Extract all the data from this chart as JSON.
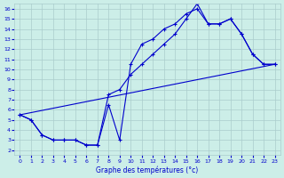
{
  "bg_color": "#cceee8",
  "grid_color": "#aacccc",
  "line_color": "#0000cc",
  "xlim": [
    -0.5,
    23.5
  ],
  "ylim": [
    1.5,
    16.5
  ],
  "xticks": [
    0,
    1,
    2,
    3,
    4,
    5,
    6,
    7,
    8,
    9,
    10,
    11,
    12,
    13,
    14,
    15,
    16,
    17,
    18,
    19,
    20,
    21,
    22,
    23
  ],
  "yticks": [
    2,
    3,
    4,
    5,
    6,
    7,
    8,
    9,
    10,
    11,
    12,
    13,
    14,
    15,
    16
  ],
  "xlabel": "Graphe des températures (°c)",
  "hours": [
    0,
    1,
    2,
    3,
    4,
    5,
    6,
    7,
    8,
    9,
    10,
    11,
    12,
    13,
    14,
    15,
    16,
    17,
    18,
    19,
    20,
    21,
    22,
    23
  ],
  "temp_jagged": [
    5.5,
    5.0,
    3.5,
    3.0,
    3.0,
    3.0,
    2.5,
    2.5,
    6.5,
    3.0,
    10.5,
    12.5,
    13.0,
    14.0,
    14.5,
    15.5,
    16.0,
    14.5,
    14.5,
    15.0,
    13.5,
    11.5,
    10.5,
    10.5
  ],
  "temp_smooth": [
    5.5,
    5.0,
    3.5,
    3.0,
    3.0,
    3.0,
    2.5,
    2.5,
    7.5,
    8.0,
    9.5,
    10.5,
    11.5,
    12.5,
    13.5,
    15.0,
    16.5,
    14.5,
    14.5,
    15.0,
    13.5,
    11.5,
    10.5,
    10.5
  ],
  "trend_x": [
    0,
    23
  ],
  "trend_y": [
    5.5,
    10.5
  ]
}
